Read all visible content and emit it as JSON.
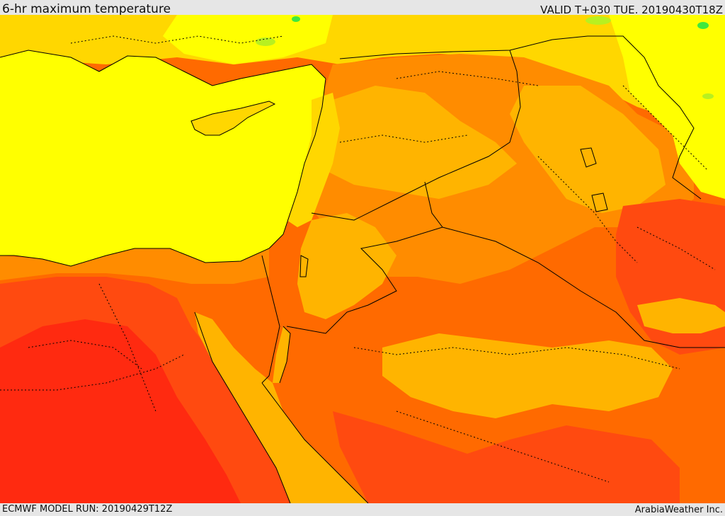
{
  "header": {
    "title": "6-hr maximum temperature",
    "valid": "VALID T+030 TUE. 20190430T18Z"
  },
  "footer": {
    "model_run": "ECMWF MODEL RUN: 20190429T12Z",
    "credit": "ArabiaWeather Inc."
  },
  "palette": {
    "green": "#3ee83e",
    "yellow_green": "#b8f020",
    "yellow": "#ffff00",
    "gold": "#ffd700",
    "amber": "#ffb400",
    "orange": "#ff8c00",
    "dark_orange": "#ff6a00",
    "red_orange": "#ff4a10",
    "red": "#ff2a10",
    "border": "#000000"
  }
}
